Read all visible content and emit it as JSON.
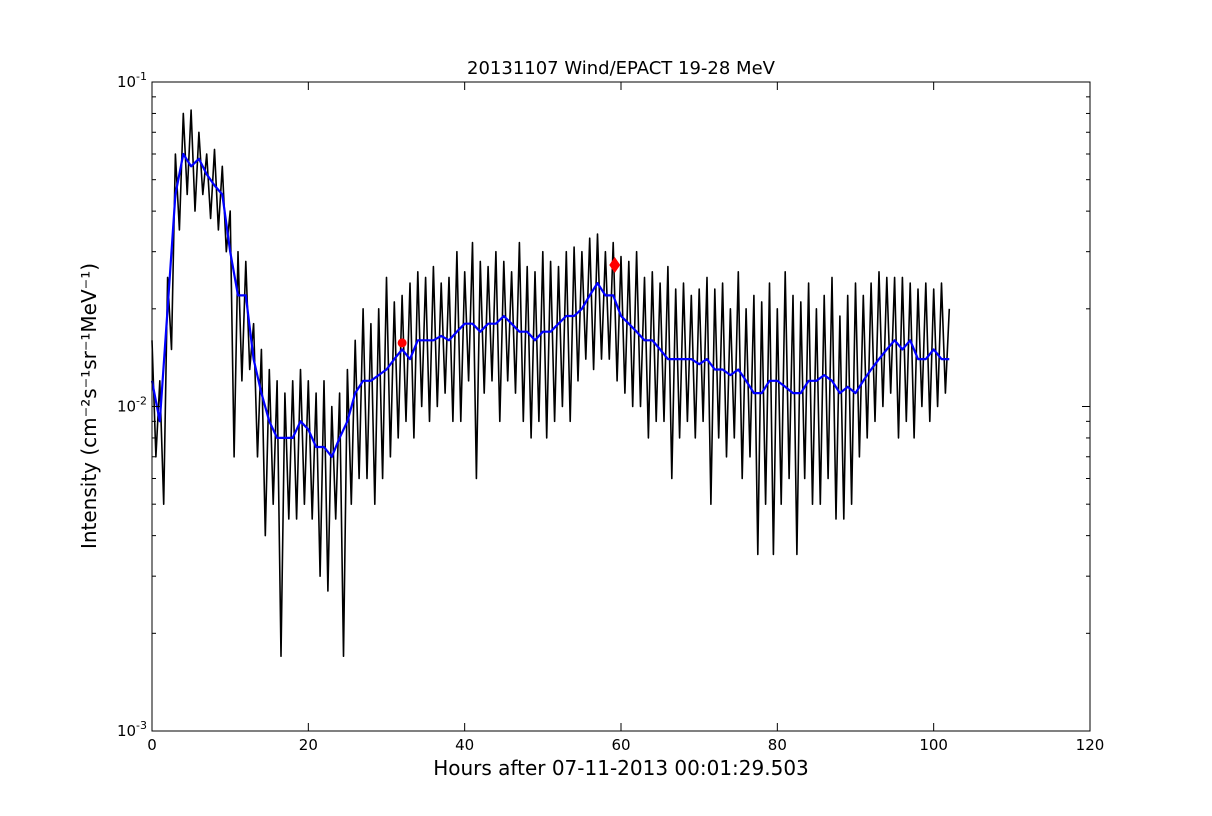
{
  "chart_data": {
    "type": "line",
    "title": "20131107 Wind/EPACT 19-28 MeV",
    "xlabel": "Hours after 07-11-2013 00:01:29.503",
    "ylabel": "Intensity (cm⁻²s⁻¹sr⁻¹MeV⁻¹)",
    "xlim": [
      0,
      120
    ],
    "ylim": [
      0.001,
      0.1
    ],
    "yscale": "log",
    "grid": false,
    "xticks": [
      0,
      20,
      40,
      60,
      80,
      100,
      120
    ],
    "xtick_labels": [
      "0",
      "20",
      "40",
      "60",
      "80",
      "100",
      "120"
    ],
    "yticks": [
      0.001,
      0.01,
      0.1
    ],
    "ytick_labels": [
      {
        "base": "10",
        "exp": "-3"
      },
      {
        "base": "10",
        "exp": "-2"
      },
      {
        "base": "10",
        "exp": "-1"
      }
    ],
    "colors": {
      "raw": "#000000",
      "smoothed": "#0000ff",
      "markers": "#ff0000"
    },
    "series": [
      {
        "id": "raw",
        "x_step_hours": 0.5,
        "values": [
          0.016,
          0.007,
          0.012,
          0.005,
          0.025,
          0.015,
          0.06,
          0.035,
          0.08,
          0.045,
          0.082,
          0.04,
          0.07,
          0.045,
          0.06,
          0.038,
          0.062,
          0.035,
          0.055,
          0.03,
          0.04,
          0.007,
          0.03,
          0.012,
          0.028,
          0.013,
          0.018,
          0.007,
          0.015,
          0.004,
          0.013,
          0.005,
          0.012,
          0.0017,
          0.011,
          0.0045,
          0.012,
          0.0045,
          0.013,
          0.005,
          0.012,
          0.0045,
          0.011,
          0.003,
          0.012,
          0.0027,
          0.01,
          0.0045,
          0.011,
          0.0017,
          0.013,
          0.005,
          0.016,
          0.006,
          0.02,
          0.006,
          0.018,
          0.005,
          0.02,
          0.006,
          0.025,
          0.007,
          0.021,
          0.008,
          0.022,
          0.009,
          0.024,
          0.008,
          0.026,
          0.01,
          0.025,
          0.009,
          0.027,
          0.01,
          0.024,
          0.011,
          0.025,
          0.009,
          0.03,
          0.009,
          0.026,
          0.012,
          0.032,
          0.006,
          0.028,
          0.011,
          0.027,
          0.012,
          0.03,
          0.009,
          0.028,
          0.012,
          0.026,
          0.011,
          0.032,
          0.009,
          0.027,
          0.008,
          0.026,
          0.009,
          0.03,
          0.008,
          0.028,
          0.009,
          0.027,
          0.01,
          0.03,
          0.009,
          0.031,
          0.012,
          0.03,
          0.014,
          0.033,
          0.013,
          0.034,
          0.014,
          0.03,
          0.014,
          0.032,
          0.012,
          0.029,
          0.011,
          0.028,
          0.01,
          0.03,
          0.01,
          0.025,
          0.008,
          0.026,
          0.009,
          0.024,
          0.009,
          0.027,
          0.006,
          0.023,
          0.008,
          0.024,
          0.009,
          0.022,
          0.008,
          0.023,
          0.009,
          0.025,
          0.005,
          0.023,
          0.008,
          0.024,
          0.007,
          0.02,
          0.008,
          0.026,
          0.006,
          0.02,
          0.007,
          0.022,
          0.0035,
          0.021,
          0.005,
          0.024,
          0.0035,
          0.02,
          0.005,
          0.026,
          0.006,
          0.022,
          0.0035,
          0.021,
          0.006,
          0.024,
          0.005,
          0.02,
          0.005,
          0.022,
          0.006,
          0.025,
          0.0045,
          0.019,
          0.0045,
          0.022,
          0.005,
          0.024,
          0.007,
          0.022,
          0.008,
          0.024,
          0.009,
          0.026,
          0.01,
          0.025,
          0.011,
          0.025,
          0.008,
          0.025,
          0.009,
          0.024,
          0.008,
          0.023,
          0.01,
          0.024,
          0.009,
          0.023,
          0.01,
          0.024,
          0.011,
          0.02
        ]
      },
      {
        "id": "smoothed",
        "x_step_hours": 1,
        "values": [
          0.012,
          0.009,
          0.02,
          0.045,
          0.06,
          0.055,
          0.058,
          0.052,
          0.048,
          0.045,
          0.03,
          0.022,
          0.022,
          0.014,
          0.011,
          0.009,
          0.008,
          0.008,
          0.008,
          0.009,
          0.0085,
          0.0075,
          0.0075,
          0.007,
          0.008,
          0.009,
          0.011,
          0.012,
          0.012,
          0.0125,
          0.013,
          0.014,
          0.015,
          0.014,
          0.016,
          0.016,
          0.016,
          0.0165,
          0.016,
          0.017,
          0.018,
          0.018,
          0.017,
          0.018,
          0.018,
          0.019,
          0.018,
          0.017,
          0.017,
          0.016,
          0.017,
          0.017,
          0.018,
          0.019,
          0.019,
          0.02,
          0.022,
          0.024,
          0.022,
          0.022,
          0.019,
          0.018,
          0.017,
          0.016,
          0.016,
          0.015,
          0.014,
          0.014,
          0.014,
          0.014,
          0.0135,
          0.014,
          0.013,
          0.013,
          0.0125,
          0.013,
          0.012,
          0.011,
          0.011,
          0.012,
          0.012,
          0.0115,
          0.011,
          0.011,
          0.012,
          0.012,
          0.0125,
          0.012,
          0.011,
          0.0115,
          0.011,
          0.012,
          0.013,
          0.014,
          0.015,
          0.016,
          0.015,
          0.016,
          0.014,
          0.014,
          0.015,
          0.014,
          0.014
        ]
      }
    ],
    "markers": [
      {
        "shape": "circle",
        "x": 32.0,
        "y": 0.0157
      },
      {
        "shape": "diamond",
        "x": 59.2,
        "y": 0.0273
      }
    ]
  }
}
